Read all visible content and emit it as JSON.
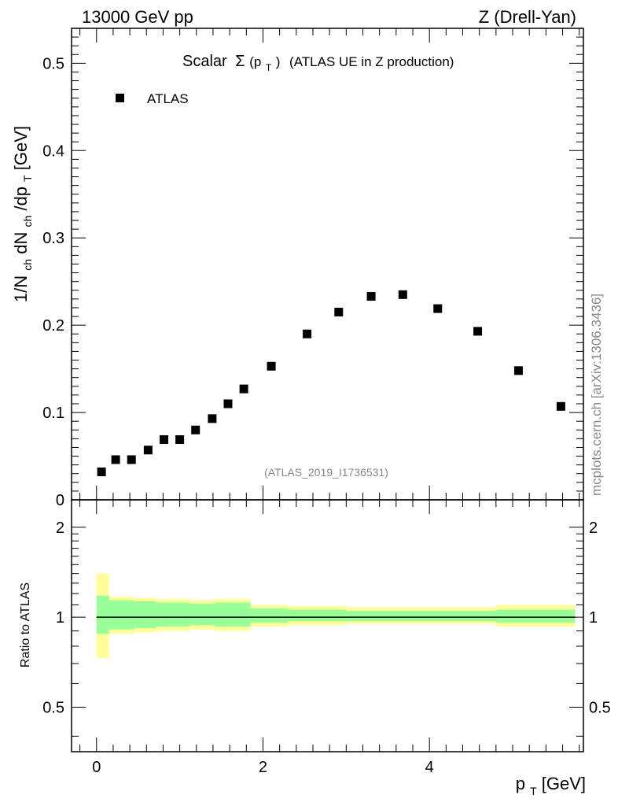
{
  "header": {
    "energy_label": "13000 GeV pp",
    "process_label": "Z (Drell-Yan)"
  },
  "side_label": "mcplots.cern.ch [arXiv:1306.3436]",
  "ratio_ylabel": "Ratio to ATLAS",
  "chart_data": [
    {
      "type": "scatter",
      "title_main": "Scalar",
      "title_sigma": "Σ",
      "title_p": "(p",
      "title_sub": "T",
      "title_close": ")",
      "title_rest": "(ATLAS UE in Z production)",
      "ylabel_parts": [
        "1/N",
        "ch",
        " dN",
        "ch",
        "/dp",
        "T",
        " [GeV]"
      ],
      "xlabel_parts": [
        "p",
        "T",
        " [GeV]"
      ],
      "reference": "(ATLAS_2019_I1736531)",
      "xlim": [
        -0.3,
        5.85
      ],
      "ylim": [
        0,
        0.54
      ],
      "xticks": [
        0,
        2,
        4
      ],
      "xtick_labels": [
        "0",
        "2",
        "4"
      ],
      "yticks": [
        0,
        0.1,
        0.2,
        0.3,
        0.4,
        0.5
      ],
      "ytick_labels": [
        "0",
        "0.1",
        "0.2",
        "0.3",
        "0.4",
        "0.5"
      ],
      "legend": {
        "label": "ATLAS",
        "position": "top-left",
        "color": "#000000"
      },
      "series": [
        {
          "name": "ATLAS",
          "x": [
            0.06,
            0.23,
            0.42,
            0.62,
            0.81,
            1.0,
            1.19,
            1.39,
            1.58,
            1.77,
            2.1,
            2.53,
            2.91,
            3.3,
            3.68,
            4.1,
            4.58,
            5.07,
            5.58
          ],
          "y": [
            0.032,
            0.046,
            0.046,
            0.057,
            0.069,
            0.069,
            0.08,
            0.093,
            0.11,
            0.127,
            0.153,
            0.19,
            0.215,
            0.233,
            0.235,
            0.219,
            0.193,
            0.148,
            0.107
          ]
        }
      ]
    },
    {
      "type": "area",
      "ylabel": "Ratio to ATLAS",
      "xlim": [
        -0.3,
        5.85
      ],
      "ylim": [
        0.355,
        2.47
      ],
      "yscale": "log",
      "yticks": [
        0.5,
        1,
        2
      ],
      "ytick_labels": [
        "0.5",
        "1",
        "2"
      ],
      "reference_line": 1,
      "colors": {
        "inner": "#99ff99",
        "outer": "#ffff99",
        "line": "#000000"
      },
      "bins": [
        {
          "lo": 0.0,
          "hi": 0.15,
          "inner": [
            0.88,
            1.18
          ],
          "outer": [
            0.73,
            1.4
          ]
        },
        {
          "lo": 0.15,
          "hi": 0.45,
          "inner": [
            0.91,
            1.14
          ],
          "outer": [
            0.88,
            1.17
          ]
        },
        {
          "lo": 0.45,
          "hi": 0.72,
          "inner": [
            0.92,
            1.13
          ],
          "outer": [
            0.89,
            1.16
          ]
        },
        {
          "lo": 0.72,
          "hi": 1.12,
          "inner": [
            0.93,
            1.12
          ],
          "outer": [
            0.9,
            1.15
          ]
        },
        {
          "lo": 1.12,
          "hi": 1.42,
          "inner": [
            0.94,
            1.11
          ],
          "outer": [
            0.91,
            1.14
          ]
        },
        {
          "lo": 1.42,
          "hi": 1.85,
          "inner": [
            0.93,
            1.12
          ],
          "outer": [
            0.9,
            1.15
          ]
        },
        {
          "lo": 1.85,
          "hi": 2.3,
          "inner": [
            0.96,
            1.07
          ],
          "outer": [
            0.93,
            1.1
          ]
        },
        {
          "lo": 2.3,
          "hi": 3.0,
          "inner": [
            0.97,
            1.06
          ],
          "outer": [
            0.94,
            1.09
          ]
        },
        {
          "lo": 3.0,
          "hi": 4.8,
          "inner": [
            0.97,
            1.05
          ],
          "outer": [
            0.95,
            1.08
          ]
        },
        {
          "lo": 4.8,
          "hi": 5.75,
          "inner": [
            0.96,
            1.06
          ],
          "outer": [
            0.93,
            1.1
          ]
        }
      ]
    }
  ]
}
